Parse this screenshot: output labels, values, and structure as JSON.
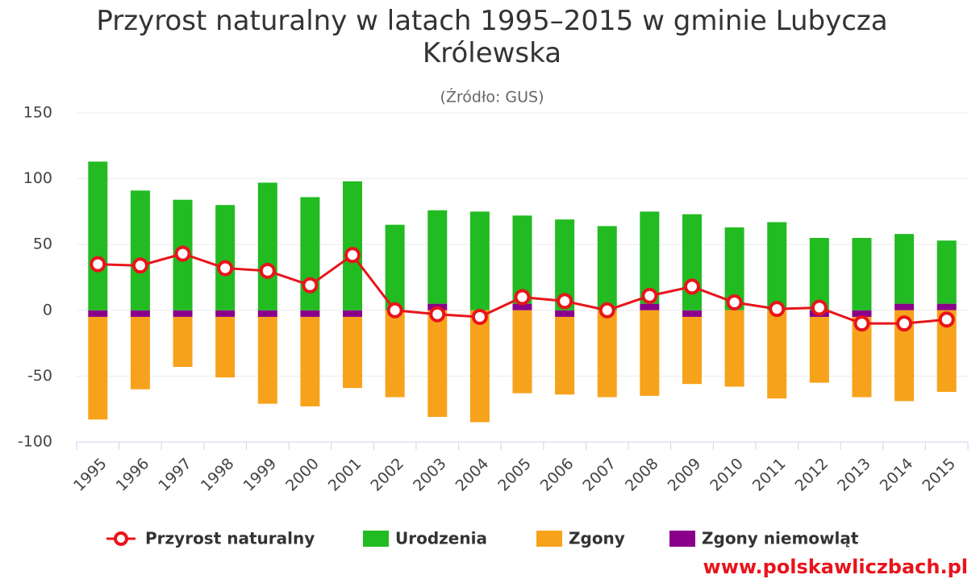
{
  "chart_data": {
    "type": "bar_line",
    "title": "Przyrost naturalny w latach 1995–2015 w gminie Lubycza Królewska",
    "subtitle": "(Źródło: GUS)",
    "watermark": "www.polskawliczbach.pl",
    "categories": [
      "1995",
      "1996",
      "1997",
      "1998",
      "1999",
      "2000",
      "2001",
      "2002",
      "2003",
      "2004",
      "2005",
      "2006",
      "2007",
      "2008",
      "2009",
      "2010",
      "2011",
      "2012",
      "2013",
      "2014",
      "2015"
    ],
    "series": [
      {
        "name": "Przyrost naturalny",
        "color": "#e8141b",
        "kind": "line",
        "values": [
          35,
          34,
          43,
          32,
          30,
          19,
          42,
          0,
          -3,
          -5,
          10,
          7,
          0,
          11,
          18,
          6,
          1,
          2,
          -10,
          -10,
          -7
        ]
      },
      {
        "name": "Urodzenia",
        "color": "#22bb22",
        "kind": "bar",
        "values": [
          113,
          91,
          84,
          80,
          97,
          86,
          98,
          65,
          71,
          75,
          67,
          69,
          64,
          70,
          73,
          63,
          67,
          55,
          55,
          53,
          48
        ]
      },
      {
        "name": "Zgony",
        "color": "#f7a21b",
        "kind": "bar",
        "values": [
          -78,
          -55,
          -38,
          -46,
          -66,
          -68,
          -54,
          -66,
          -81,
          -85,
          -63,
          -59,
          -66,
          -65,
          -51,
          -58,
          -67,
          -50,
          -61,
          -69,
          -62
        ]
      },
      {
        "name": "Zgony niemowląt",
        "color": "#8b008b",
        "kind": "bar",
        "values": [
          -5,
          -5,
          -5,
          -5,
          -5,
          -5,
          -5,
          0,
          5,
          0,
          5,
          -5,
          0,
          5,
          -5,
          0,
          0,
          -5,
          -5,
          5,
          5
        ]
      }
    ],
    "ylim": [
      -100,
      150
    ],
    "yticks": [
      -100,
      -50,
      0,
      50,
      100,
      150
    ],
    "grid": true
  }
}
